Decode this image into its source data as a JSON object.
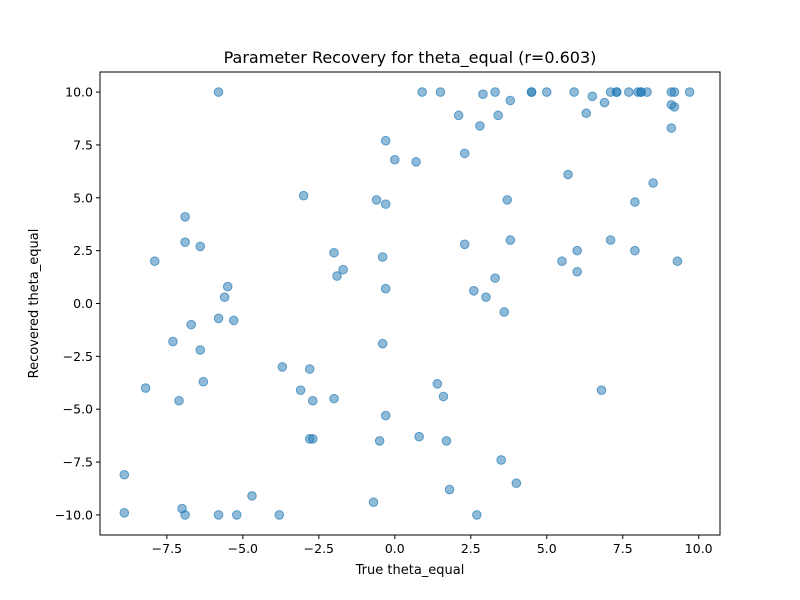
{
  "chart_data": {
    "type": "scatter",
    "title": "Parameter Recovery for theta_equal (r=0.603)",
    "xlabel": "True theta_equal",
    "ylabel": "Recovered theta_equal",
    "xlim": [
      -9.7,
      10.7
    ],
    "ylim": [
      -10.95,
      10.95
    ],
    "xticks": [
      -7.5,
      -5.0,
      -2.5,
      0.0,
      2.5,
      5.0,
      7.5,
      10.0
    ],
    "xtick_labels": [
      "−7.5",
      "−5.0",
      "−2.5",
      "0.0",
      "2.5",
      "5.0",
      "7.5",
      "10.0"
    ],
    "yticks": [
      -10.0,
      -7.5,
      -5.0,
      -2.5,
      0.0,
      2.5,
      5.0,
      7.5,
      10.0
    ],
    "ytick_labels": [
      "−10.0",
      "−7.5",
      "−5.0",
      "−2.5",
      "0.0",
      "2.5",
      "5.0",
      "7.5",
      "10.0"
    ],
    "grid": false,
    "marker_color": "#1f77b4",
    "marker_alpha": 0.5,
    "points": [
      [
        -5.8,
        10.0
      ],
      [
        0.9,
        10.0
      ],
      [
        1.5,
        10.0
      ],
      [
        2.9,
        9.9
      ],
      [
        3.3,
        10.0
      ],
      [
        3.8,
        9.6
      ],
      [
        4.5,
        10.0
      ],
      [
        4.5,
        10.0
      ],
      [
        5.0,
        10.0
      ],
      [
        5.9,
        10.0
      ],
      [
        6.5,
        9.8
      ],
      [
        6.9,
        9.5
      ],
      [
        7.1,
        10.0
      ],
      [
        7.3,
        10.0
      ],
      [
        7.3,
        10.0
      ],
      [
        7.7,
        10.0
      ],
      [
        8.0,
        10.0
      ],
      [
        8.1,
        10.0
      ],
      [
        8.1,
        10.0
      ],
      [
        8.3,
        10.0
      ],
      [
        9.1,
        10.0
      ],
      [
        9.2,
        10.0
      ],
      [
        9.7,
        10.0
      ],
      [
        9.1,
        9.4
      ],
      [
        9.2,
        9.3
      ],
      [
        2.1,
        8.9
      ],
      [
        3.4,
        8.9
      ],
      [
        6.3,
        9.0
      ],
      [
        2.8,
        8.4
      ],
      [
        9.1,
        8.3
      ],
      [
        -0.3,
        7.7
      ],
      [
        0.0,
        6.8
      ],
      [
        0.7,
        6.7
      ],
      [
        2.3,
        7.1
      ],
      [
        5.7,
        6.1
      ],
      [
        8.5,
        5.7
      ],
      [
        -3.0,
        5.1
      ],
      [
        -0.6,
        4.9
      ],
      [
        -0.3,
        4.7
      ],
      [
        3.7,
        4.9
      ],
      [
        7.9,
        4.8
      ],
      [
        -6.9,
        4.1
      ],
      [
        -6.9,
        2.9
      ],
      [
        -6.4,
        2.7
      ],
      [
        -7.9,
        2.0
      ],
      [
        -2.0,
        2.4
      ],
      [
        -0.4,
        2.2
      ],
      [
        2.3,
        2.8
      ],
      [
        3.8,
        3.0
      ],
      [
        6.0,
        2.5
      ],
      [
        7.1,
        3.0
      ],
      [
        7.9,
        2.5
      ],
      [
        9.3,
        2.0
      ],
      [
        5.5,
        2.0
      ],
      [
        6.0,
        1.5
      ],
      [
        -1.7,
        1.6
      ],
      [
        -1.9,
        1.3
      ],
      [
        3.3,
        1.2
      ],
      [
        2.6,
        0.6
      ],
      [
        3.0,
        0.3
      ],
      [
        -0.3,
        0.7
      ],
      [
        -5.5,
        0.8
      ],
      [
        -5.6,
        0.3
      ],
      [
        -5.8,
        -0.7
      ],
      [
        -5.3,
        -0.8
      ],
      [
        -6.7,
        -1.0
      ],
      [
        3.6,
        -0.4
      ],
      [
        -7.3,
        -1.8
      ],
      [
        -6.4,
        -2.2
      ],
      [
        -0.4,
        -1.9
      ],
      [
        -3.7,
        -3.0
      ],
      [
        -2.8,
        -3.1
      ],
      [
        -6.3,
        -3.7
      ],
      [
        -8.2,
        -4.0
      ],
      [
        -7.1,
        -4.6
      ],
      [
        -3.1,
        -4.1
      ],
      [
        -2.7,
        -4.6
      ],
      [
        -2.0,
        -4.5
      ],
      [
        1.4,
        -3.8
      ],
      [
        1.6,
        -4.4
      ],
      [
        6.8,
        -4.1
      ],
      [
        -0.3,
        -5.3
      ],
      [
        -2.8,
        -6.4
      ],
      [
        -2.7,
        -6.4
      ],
      [
        -0.5,
        -6.5
      ],
      [
        0.8,
        -6.3
      ],
      [
        1.7,
        -6.5
      ],
      [
        3.5,
        -7.4
      ],
      [
        -8.9,
        -8.1
      ],
      [
        1.8,
        -8.8
      ],
      [
        4.0,
        -8.5
      ],
      [
        -4.7,
        -9.1
      ],
      [
        -0.7,
        -9.4
      ],
      [
        -8.9,
        -9.9
      ],
      [
        -7.0,
        -9.7
      ],
      [
        -6.9,
        -10.0
      ],
      [
        -5.8,
        -10.0
      ],
      [
        -5.2,
        -10.0
      ],
      [
        -3.8,
        -10.0
      ],
      [
        2.7,
        -10.0
      ]
    ]
  }
}
